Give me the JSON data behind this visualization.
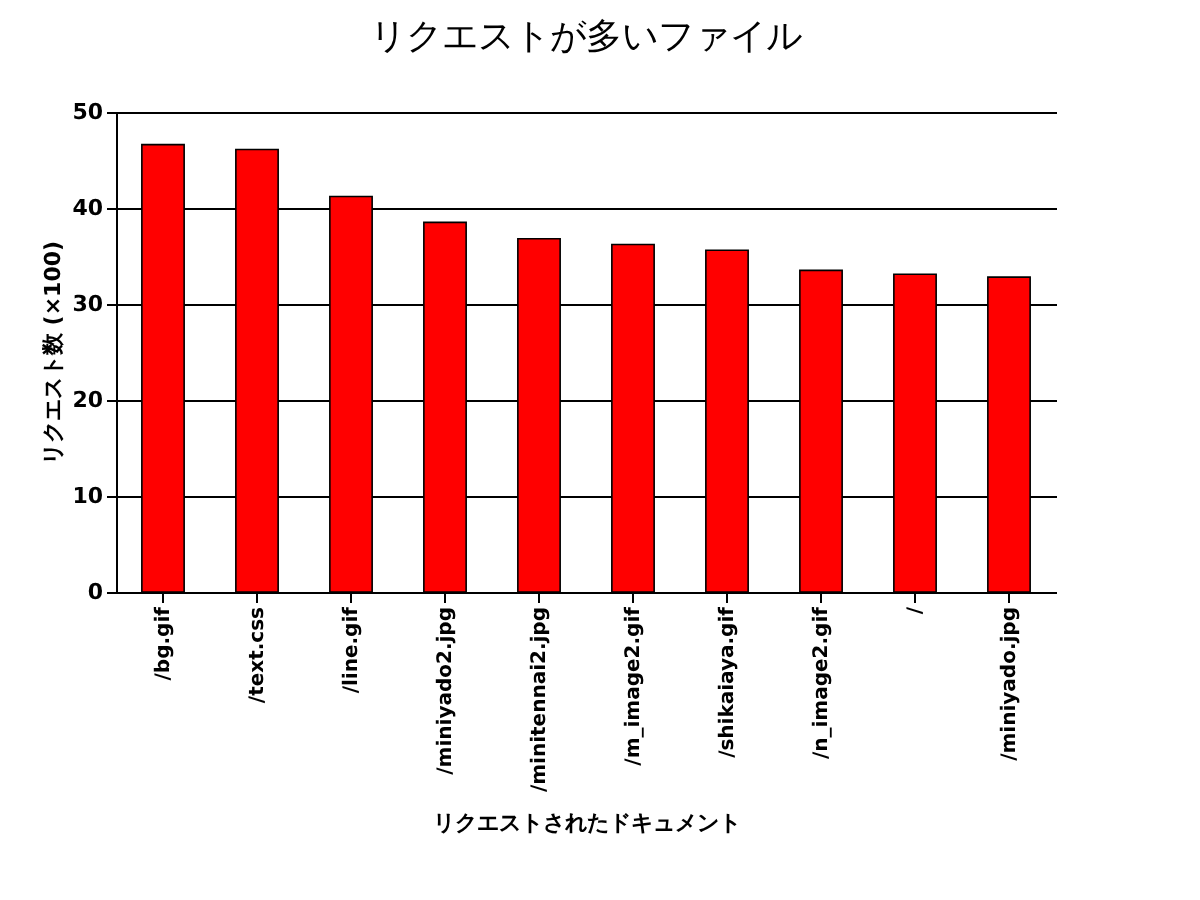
{
  "chart_data": {
    "type": "bar",
    "title": "リクエストが多いファイル",
    "xlabel": "リクエストされたドキュメント",
    "ylabel": "リクエスト数 (×100)",
    "categories": [
      "/bg.gif",
      "/text.css",
      "/line.gif",
      "/miniyado2.jpg",
      "/minitennai2.jpg",
      "/m_image2.gif",
      "/shikaiaya.gif",
      "/n_image2.gif",
      "/",
      "/miniyado.jpg"
    ],
    "values": [
      46.6,
      46.1,
      41.2,
      38.5,
      36.8,
      36.2,
      35.6,
      33.5,
      33.1,
      32.8
    ],
    "color": "#ff0000",
    "ylim": [
      0,
      50
    ],
    "yticks": [
      0,
      10,
      20,
      30,
      40,
      50
    ],
    "grid": "y"
  }
}
